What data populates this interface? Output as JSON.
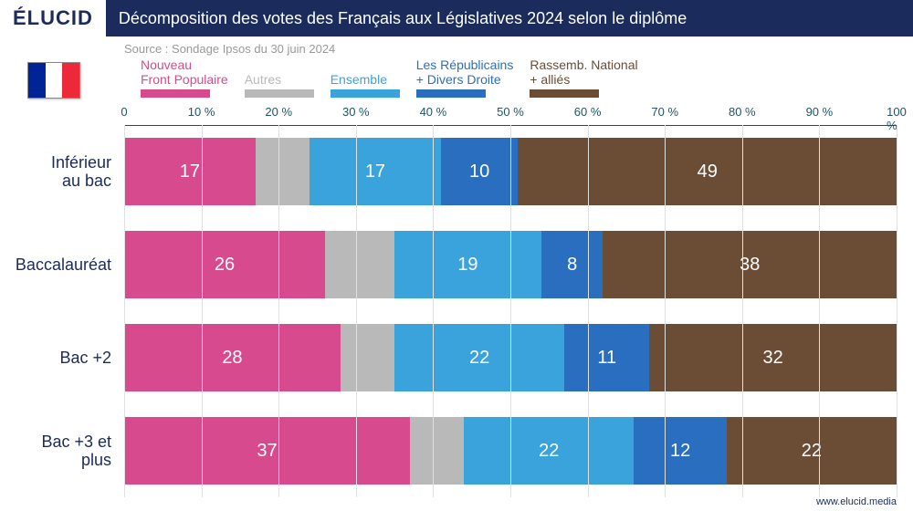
{
  "header": {
    "logo": "ÉLUCID",
    "title": "Décomposition des votes des Français aux Législatives 2024 selon le diplôme"
  },
  "source": "Source : Sondage Ipsos du 30 juin 2024",
  "flag_colors": [
    "#002395",
    "#ffffff",
    "#ed2939"
  ],
  "legend": [
    {
      "label_lines": [
        "Nouveau",
        "Front Populaire"
      ],
      "color": "#d84a8e"
    },
    {
      "label_lines": [
        "Autres"
      ],
      "color": "#b9b9b9"
    },
    {
      "label_lines": [
        "Ensemble"
      ],
      "color": "#3aa3db"
    },
    {
      "label_lines": [
        "Les Républicains",
        "+ Divers Droite"
      ],
      "color": "#2a6fbf"
    },
    {
      "label_lines": [
        "Rassemb. National",
        "+ alliés"
      ],
      "color": "#6a4d34"
    }
  ],
  "chart": {
    "type": "stacked-horizontal-bar",
    "xlim": [
      0,
      100
    ],
    "xticks": [
      0,
      10,
      20,
      30,
      40,
      50,
      60,
      70,
      80,
      90,
      100
    ],
    "xtick_labels": [
      "0",
      "10 %",
      "20 %",
      "30 %",
      "40 %",
      "50 %",
      "60 %",
      "70 %",
      "80 %",
      "90 %",
      "100 %"
    ],
    "categories": [
      {
        "label_lines": [
          "Inférieur",
          "au bac"
        ],
        "values": [
          17,
          7,
          17,
          10,
          49
        ],
        "show_label": [
          true,
          false,
          true,
          true,
          true
        ]
      },
      {
        "label_lines": [
          "Baccalauréat"
        ],
        "values": [
          26,
          9,
          19,
          8,
          38
        ],
        "show_label": [
          true,
          false,
          true,
          true,
          true
        ]
      },
      {
        "label_lines": [
          "Bac +2"
        ],
        "values": [
          28,
          7,
          22,
          11,
          32
        ],
        "show_label": [
          true,
          false,
          true,
          true,
          true
        ]
      },
      {
        "label_lines": [
          "Bac +3 et",
          "plus"
        ],
        "values": [
          37,
          7,
          22,
          12,
          22
        ],
        "show_label": [
          true,
          false,
          true,
          true,
          true
        ]
      }
    ],
    "value_label_fontsize": 20,
    "ylabel_fontsize": 18,
    "xtick_fontsize": 13,
    "grid_color": "#e0e0e0",
    "bg_color": "#ffffff"
  },
  "footer_url": "www.elucid.media"
}
